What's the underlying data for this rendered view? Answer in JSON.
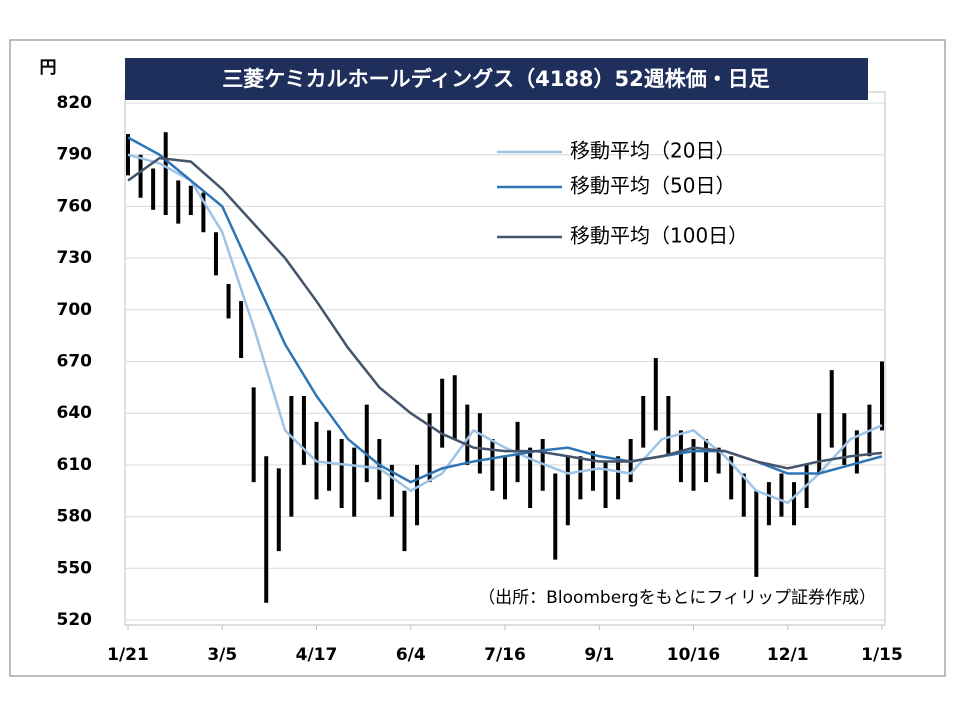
{
  "chart_data": {
    "type": "candlestick",
    "title": "三菱ケミカルホールディングス（4188）52週株価・日足",
    "ylabel": "円",
    "source_note": "（出所：Bloombergをもとにフィリップ証券作成）",
    "ylim": [
      520,
      820
    ],
    "yticks": [
      520,
      550,
      580,
      610,
      640,
      670,
      700,
      730,
      760,
      790,
      820
    ],
    "xlim": [
      0,
      240
    ],
    "xticks": [
      {
        "value": 0,
        "label": "1/21"
      },
      {
        "value": 30,
        "label": "3/5"
      },
      {
        "value": 60,
        "label": "4/17"
      },
      {
        "value": 90,
        "label": "6/4"
      },
      {
        "value": 120,
        "label": "7/16"
      },
      {
        "value": 150,
        "label": "9/1"
      },
      {
        "value": 180,
        "label": "10/16"
      },
      {
        "value": 210,
        "label": "12/1"
      },
      {
        "value": 240,
        "label": "1/15"
      }
    ],
    "grid": true,
    "legend": "upper right",
    "color": "#000000",
    "x": [
      0,
      4,
      8,
      12,
      16,
      20,
      24,
      28,
      32,
      36,
      40,
      44,
      48,
      52,
      56,
      60,
      64,
      68,
      72,
      76,
      80,
      84,
      88,
      92,
      96,
      100,
      104,
      108,
      112,
      116,
      120,
      124,
      128,
      132,
      136,
      140,
      144,
      148,
      152,
      156,
      160,
      164,
      168,
      172,
      176,
      180,
      184,
      188,
      192,
      196,
      200,
      204,
      208,
      212,
      216,
      220,
      224,
      228,
      232,
      236,
      240
    ],
    "low": [
      778,
      765,
      758,
      755,
      750,
      755,
      745,
      720,
      695,
      672,
      600,
      530,
      560,
      580,
      610,
      590,
      595,
      585,
      580,
      600,
      590,
      580,
      560,
      575,
      600,
      620,
      625,
      610,
      605,
      595,
      590,
      600,
      585,
      595,
      555,
      575,
      590,
      595,
      585,
      590,
      600,
      620,
      630,
      615,
      600,
      595,
      600,
      605,
      590,
      580,
      545,
      575,
      580,
      575,
      585,
      605,
      620,
      610,
      605,
      615,
      630
    ],
    "high": [
      802,
      790,
      782,
      803,
      775,
      772,
      768,
      745,
      715,
      705,
      655,
      615,
      608,
      650,
      650,
      635,
      630,
      625,
      620,
      645,
      625,
      610,
      595,
      610,
      640,
      660,
      662,
      645,
      640,
      625,
      615,
      635,
      620,
      625,
      605,
      615,
      615,
      618,
      612,
      615,
      625,
      650,
      672,
      650,
      630,
      625,
      625,
      620,
      615,
      605,
      595,
      600,
      605,
      600,
      610,
      640,
      665,
      640,
      630,
      645,
      670
    ],
    "series": [
      {
        "name": "移動平均（20日）",
        "color": "#9dc3e6",
        "x": [
          0,
          10,
          20,
          30,
          40,
          50,
          60,
          70,
          80,
          90,
          100,
          110,
          120,
          130,
          140,
          150,
          160,
          170,
          180,
          190,
          200,
          210,
          220,
          230,
          240
        ],
        "values": [
          790,
          785,
          775,
          745,
          690,
          630,
          612,
          610,
          608,
          595,
          605,
          630,
          620,
          612,
          605,
          608,
          605,
          625,
          630,
          615,
          595,
          588,
          605,
          625,
          633
        ]
      },
      {
        "name": "移動平均（50日）",
        "color": "#2e75b6",
        "x": [
          0,
          10,
          20,
          30,
          40,
          50,
          60,
          70,
          80,
          90,
          100,
          110,
          120,
          130,
          140,
          150,
          160,
          170,
          180,
          190,
          200,
          210,
          220,
          230,
          240
        ],
        "values": [
          800,
          790,
          775,
          760,
          720,
          680,
          650,
          625,
          610,
          600,
          608,
          612,
          615,
          618,
          620,
          615,
          612,
          615,
          618,
          618,
          612,
          605,
          605,
          610,
          615
        ]
      },
      {
        "name": "移動平均（100日）",
        "color": "#44546a",
        "x": [
          0,
          10,
          20,
          30,
          40,
          50,
          60,
          70,
          80,
          90,
          100,
          110,
          120,
          130,
          140,
          150,
          160,
          170,
          180,
          190,
          200,
          210,
          220,
          230,
          240
        ],
        "values": [
          775,
          788,
          786,
          770,
          750,
          730,
          705,
          678,
          655,
          640,
          628,
          620,
          618,
          618,
          615,
          612,
          612,
          615,
          620,
          618,
          612,
          608,
          612,
          615,
          617
        ]
      }
    ]
  }
}
